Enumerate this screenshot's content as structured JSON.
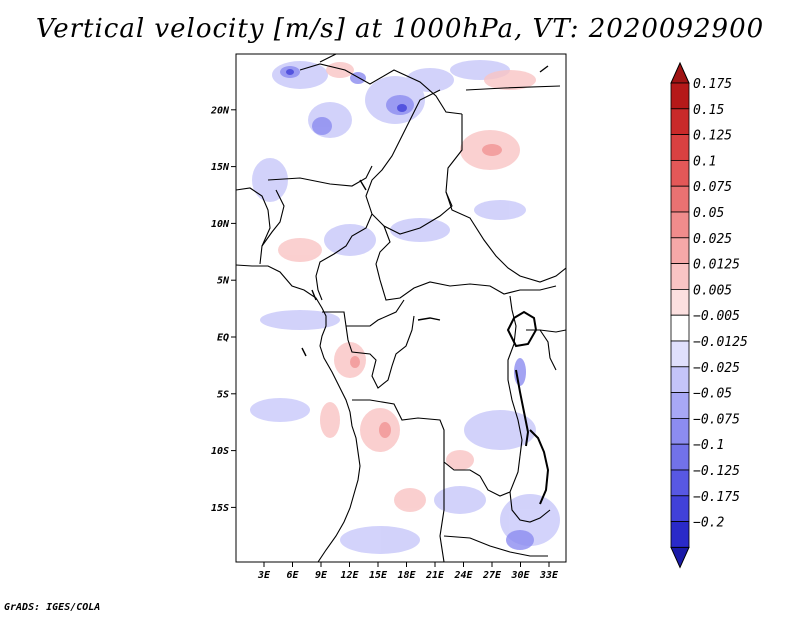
{
  "title": "Vertical velocity [m/s] at 1000hPa, VT: 2020092900",
  "credit": "GrADS: IGES/COLA",
  "map": {
    "region": "Central Africa",
    "lon_range": [
      0,
      35
    ],
    "lat_range": [
      -20,
      25
    ],
    "lat_ticks": [
      {
        "lat": 20,
        "label": "20N"
      },
      {
        "lat": 15,
        "label": "15N"
      },
      {
        "lat": 10,
        "label": "10N"
      },
      {
        "lat": 5,
        "label": "5N"
      },
      {
        "lat": 0,
        "label": "EQ"
      },
      {
        "lat": -5,
        "label": "5S"
      },
      {
        "lat": -10,
        "label": "10S"
      },
      {
        "lat": -15,
        "label": "15S"
      }
    ],
    "lon_ticks": [
      {
        "lon": 3,
        "label": "3E"
      },
      {
        "lon": 6,
        "label": "6E"
      },
      {
        "lon": 9,
        "label": "9E"
      },
      {
        "lon": 12,
        "label": "12E"
      },
      {
        "lon": 15,
        "label": "15E"
      },
      {
        "lon": 18,
        "label": "18E"
      },
      {
        "lon": 21,
        "label": "21E"
      },
      {
        "lon": 24,
        "label": "24E"
      },
      {
        "lon": 27,
        "label": "27E"
      },
      {
        "lon": 30,
        "label": "30E"
      },
      {
        "lon": 33,
        "label": "33E"
      }
    ]
  },
  "colorbar": {
    "levels": [
      {
        "label": "0.175",
        "color": "#b51919"
      },
      {
        "label": "0.15",
        "color": "#c92a2a"
      },
      {
        "label": "0.125",
        "color": "#d94141"
      },
      {
        "label": "0.1",
        "color": "#e35858"
      },
      {
        "label": "0.075",
        "color": "#e97272"
      },
      {
        "label": "0.05",
        "color": "#f08c8c"
      },
      {
        "label": "0.025",
        "color": "#f5a8a8"
      },
      {
        "label": "0.0125",
        "color": "#f9c4c4"
      },
      {
        "label": "0.005",
        "color": "#fce0e0"
      },
      {
        "label": "−0.005",
        "color": "#ffffff"
      },
      {
        "label": "−0.0125",
        "color": "#e0e0fc"
      },
      {
        "label": "−0.025",
        "color": "#c4c4f9"
      },
      {
        "label": "−0.05",
        "color": "#a8a8f5"
      },
      {
        "label": "−0.075",
        "color": "#8c8cf0"
      },
      {
        "label": "−0.1",
        "color": "#7272e9"
      },
      {
        "label": "−0.125",
        "color": "#5858e3"
      },
      {
        "label": "−0.175",
        "color": "#4141d9"
      },
      {
        "label": "−0.2",
        "color": "#2a2ac9"
      }
    ],
    "top_cap_color": "#a01414",
    "bottom_cap_color": "#1a1aa8"
  }
}
